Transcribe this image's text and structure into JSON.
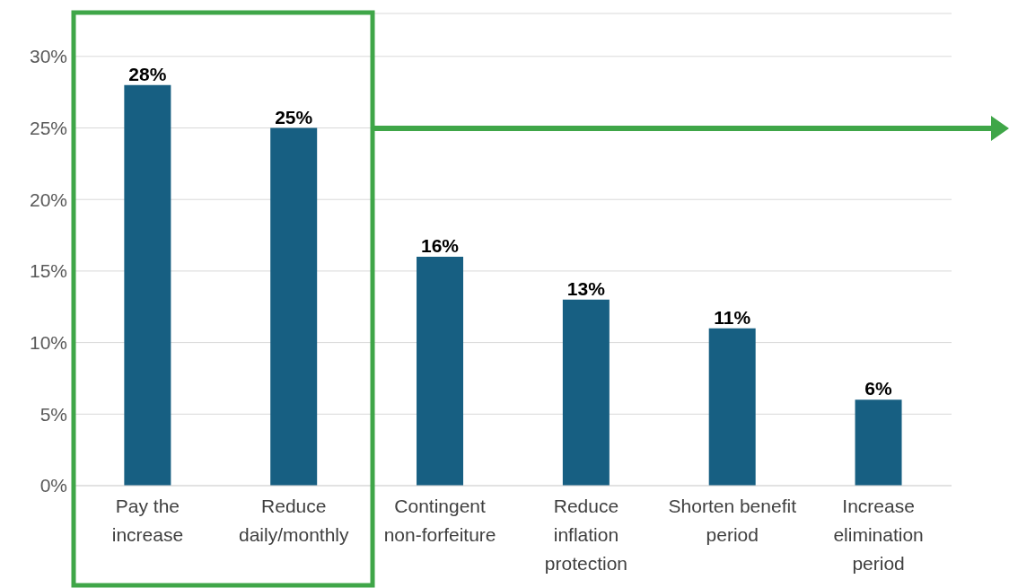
{
  "chart_data": {
    "type": "bar",
    "categories": [
      "Pay the\nincrease",
      "Reduce\ndaily/monthly",
      "Contingent\nnon-forfeiture",
      "Reduce\ninflation\nprotection",
      "Shorten benefit\nperiod",
      "Increase\nelimination\nperiod"
    ],
    "values": [
      28,
      25,
      16,
      13,
      11,
      6
    ],
    "color": "#175f82",
    "value_labels": [
      "28%",
      "25%",
      "16%",
      "13%",
      "11%",
      "6%"
    ],
    "ylim": [
      0,
      33
    ],
    "yticks": [
      {
        "value": 0,
        "label": "0%"
      },
      {
        "value": 5,
        "label": "5%"
      },
      {
        "value": 10,
        "label": "10%"
      },
      {
        "value": 15,
        "label": "15%"
      },
      {
        "value": 20,
        "label": "20%"
      },
      {
        "value": 25,
        "label": "25%"
      },
      {
        "value": 30,
        "label": "30%"
      }
    ],
    "grid": "y"
  }
}
